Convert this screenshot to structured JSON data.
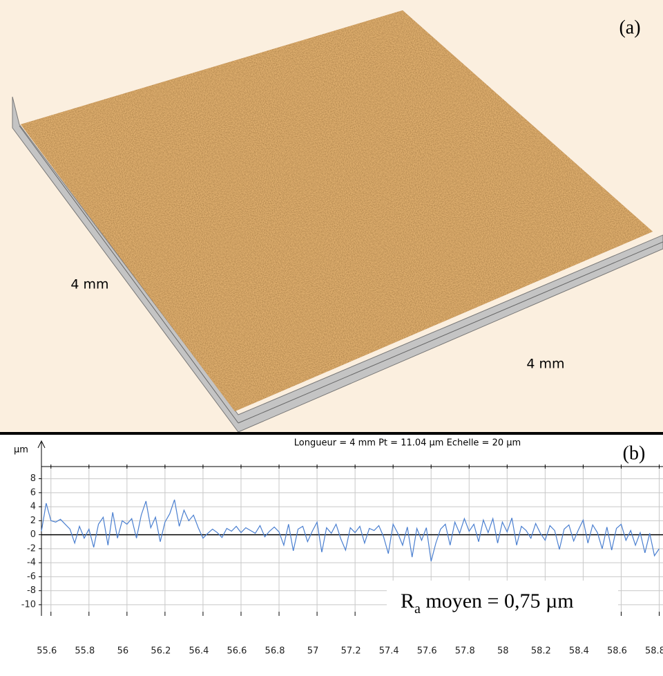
{
  "panel_a": {
    "label": "(a)",
    "dim_left": "4 mm",
    "dim_right": "4 mm"
  },
  "chart_data": {
    "type": "line",
    "label": "(b)",
    "header": "Longueur = 4 mm  Pt = 11.04 µm  Echelle = 20 µm",
    "y_label": "µm",
    "annotation": {
      "base": "R",
      "subscript": "a",
      "rest": " moyen = 0,75 µm"
    },
    "color": "#4a7fd0",
    "grid": true,
    "xlim": [
      55.55,
      58.82
    ],
    "ylim": [
      -11,
      12.4
    ],
    "xticks": [
      55.6,
      55.8,
      56,
      56.2,
      56.4,
      56.6,
      56.8,
      57,
      57.2,
      57.4,
      57.6,
      57.8,
      58,
      58.2,
      58.4,
      58.6,
      58.8
    ],
    "yticks": [
      8,
      6,
      4,
      2,
      0,
      -2,
      -4,
      -6,
      -8,
      -10
    ],
    "x": [
      55.55,
      55.575,
      55.6,
      55.625,
      55.65,
      55.675,
      55.7,
      55.725,
      55.75,
      55.775,
      55.8,
      55.825,
      55.85,
      55.875,
      55.9,
      55.925,
      55.95,
      55.975,
      56,
      56.025,
      56.05,
      56.075,
      56.1,
      56.125,
      56.15,
      56.175,
      56.2,
      56.225,
      56.25,
      56.275,
      56.3,
      56.325,
      56.35,
      56.375,
      56.4,
      56.425,
      56.45,
      56.475,
      56.5,
      56.525,
      56.55,
      56.575,
      56.6,
      56.625,
      56.65,
      56.675,
      56.7,
      56.725,
      56.75,
      56.775,
      56.8,
      56.825,
      56.85,
      56.875,
      56.9,
      56.925,
      56.95,
      56.975,
      57,
      57.025,
      57.05,
      57.075,
      57.1,
      57.125,
      57.15,
      57.175,
      57.2,
      57.225,
      57.25,
      57.275,
      57.3,
      57.325,
      57.35,
      57.375,
      57.4,
      57.425,
      57.45,
      57.475,
      57.5,
      57.525,
      57.55,
      57.575,
      57.6,
      57.625,
      57.65,
      57.675,
      57.7,
      57.725,
      57.75,
      57.775,
      57.8,
      57.825,
      57.85,
      57.875,
      57.9,
      57.925,
      57.95,
      57.975,
      58,
      58.025,
      58.05,
      58.075,
      58.1,
      58.125,
      58.15,
      58.175,
      58.2,
      58.225,
      58.25,
      58.275,
      58.3,
      58.325,
      58.35,
      58.375,
      58.4,
      58.425,
      58.45,
      58.475,
      58.5,
      58.525,
      58.55,
      58.575,
      58.6,
      58.625,
      58.65,
      58.675,
      58.7,
      58.725,
      58.75,
      58.775,
      58.8
    ],
    "values": [
      0.5,
      4.5,
      2,
      1.8,
      2.2,
      1.5,
      0.8,
      -1.2,
      1.2,
      -0.5,
      0.8,
      -1.8,
      1.5,
      2.5,
      -1.5,
      3.2,
      -0.5,
      2,
      1.5,
      2.3,
      -0.5,
      2.8,
      4.8,
      1,
      2.5,
      -1,
      1.8,
      3,
      5,
      1.2,
      3.5,
      2,
      2.8,
      1,
      -0.5,
      0.2,
      0.8,
      0.3,
      -0.4,
      0.9,
      0.5,
      1.2,
      0.3,
      1,
      0.6,
      0.2,
      1.3,
      -0.3,
      0.5,
      1.1,
      0.4,
      -1.5,
      1.5,
      -2.3,
      0.8,
      1.2,
      -1,
      0.5,
      1.8,
      -2.5,
      1,
      0.2,
      1.5,
      -0.6,
      -2.2,
      1,
      0.3,
      1.2,
      -1.2,
      0.9,
      0.6,
      1.3,
      -0.3,
      -2.7,
      1.5,
      0.2,
      -1.5,
      1.1,
      -3.2,
      0.9,
      -0.8,
      1,
      -3.8,
      -1.2,
      0.8,
      1.5,
      -1.5,
      1.8,
      0.2,
      2.3,
      0.5,
      1.5,
      -1,
      2.1,
      0.3,
      2.3,
      -1.2,
      1.8,
      0.4,
      2.4,
      -1.5,
      1.2,
      0.6,
      -0.5,
      1.6,
      0.2,
      -0.8,
      1.3,
      0.6,
      -2.1,
      0.8,
      1.4,
      -0.9,
      0.7,
      2.1,
      -1.2,
      1.4,
      0.3,
      -2,
      1.1,
      -2.2,
      0.9,
      1.5,
      -0.8,
      0.6,
      -1.5,
      0.3,
      -2.6,
      0.2,
      -3,
      -2
    ]
  }
}
